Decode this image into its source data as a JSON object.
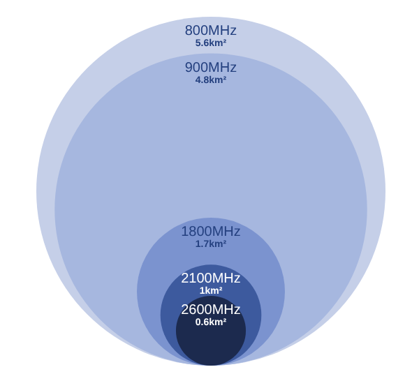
{
  "chart_data": {
    "type": "other",
    "categories": [
      "800MHz",
      "900MHz",
      "1800MHz",
      "2100MHz",
      "2600MHz"
    ],
    "values": [
      5.6,
      4.8,
      1.7,
      1,
      0.6
    ],
    "value_labels": [
      "5.6km²",
      "4.8km²",
      "1.7km²",
      "1km²",
      "0.6km²"
    ],
    "colors": [
      "#c5cfe8",
      "#a6b7df",
      "#7b93cf",
      "#3d5a9e",
      "#1c2a4e"
    ]
  }
}
